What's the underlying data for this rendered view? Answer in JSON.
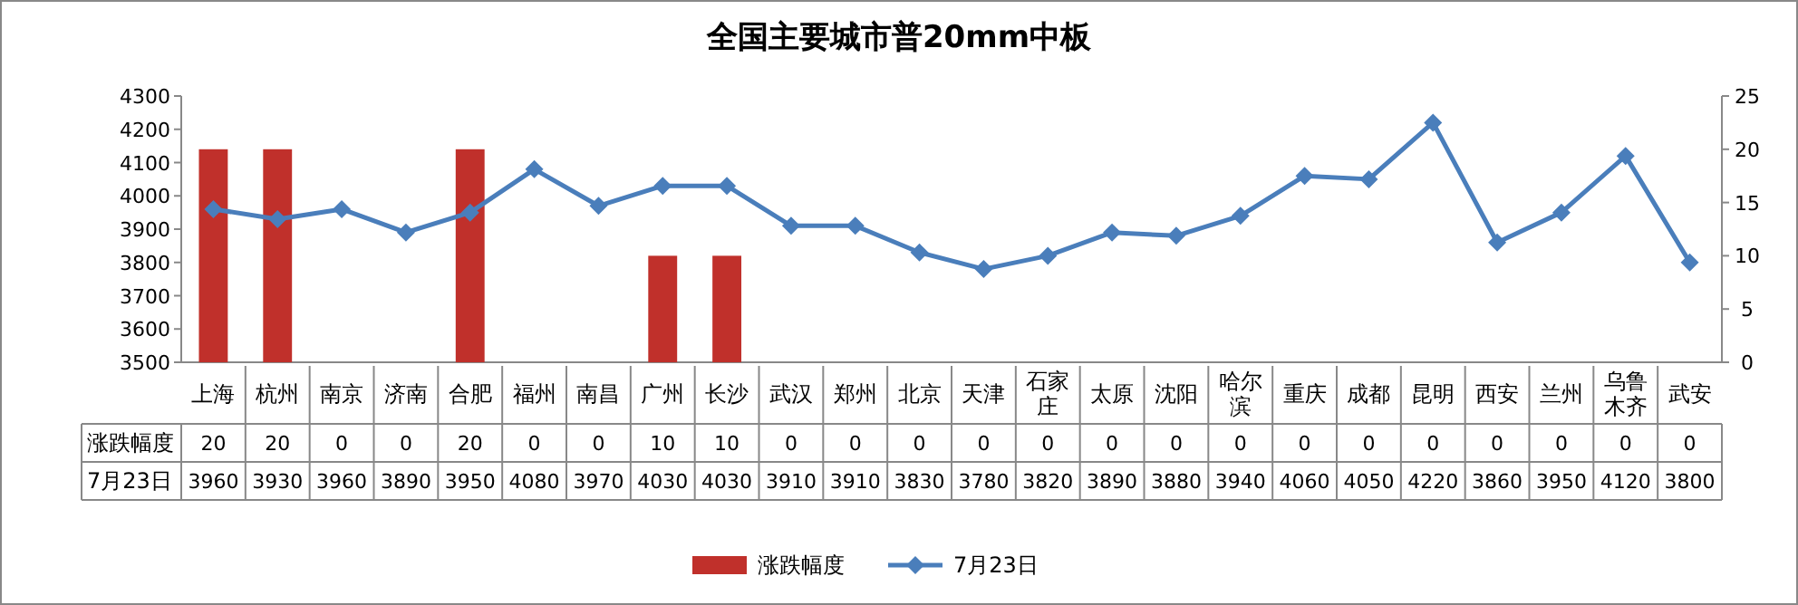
{
  "chart_data": {
    "type": "bar",
    "title": "全国主要城市普20mm中板",
    "categories": [
      "上海",
      "杭州",
      "南京",
      "济南",
      "合肥",
      "福州",
      "南昌",
      "广州",
      "长沙",
      "武汉",
      "郑州",
      "北京",
      "天津",
      "石家庄",
      "太原",
      "沈阳",
      "哈尔滨",
      "重庆",
      "成都",
      "昆明",
      "西安",
      "兰州",
      "乌鲁木齐",
      "武安"
    ],
    "series": [
      {
        "name": "涨跌幅度",
        "axis": "y2",
        "color": "#c0302b",
        "values": [
          20,
          20,
          0,
          0,
          20,
          0,
          0,
          10,
          10,
          0,
          0,
          0,
          0,
          0,
          0,
          0,
          0,
          0,
          0,
          0,
          0,
          0,
          0,
          0
        ]
      },
      {
        "name": "7月23日",
        "type": "line",
        "color": "#4a7ebb",
        "values": [
          3960,
          3930,
          3960,
          3890,
          3950,
          4080,
          3970,
          4030,
          4030,
          3910,
          3910,
          3830,
          3780,
          3820,
          3890,
          3880,
          3940,
          4060,
          4050,
          4220,
          3860,
          3950,
          4120,
          3800
        ]
      }
    ],
    "ylim": [
      3500,
      4300
    ],
    "yticks": [
      3500,
      3600,
      3700,
      3800,
      3900,
      4000,
      4100,
      4200,
      4300
    ],
    "y2lim": [
      0,
      25
    ],
    "y2ticks": [
      0,
      5,
      10,
      15,
      20,
      25
    ],
    "data_labels": true,
    "legend": "bottom",
    "marker": "diamond",
    "line_style": "solid"
  }
}
